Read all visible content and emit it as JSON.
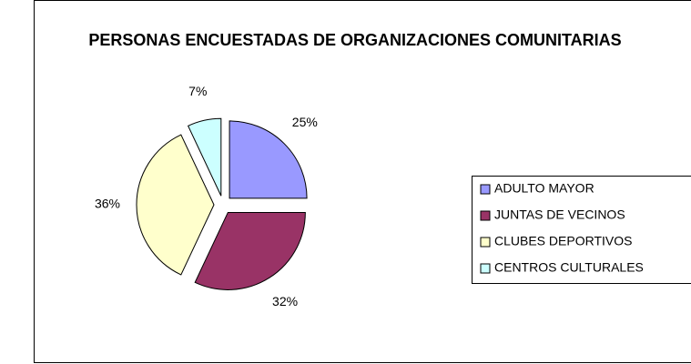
{
  "chart_data": {
    "type": "pie",
    "title": "PERSONAS ENCUESTADAS DE ORGANIZACIONES COMUNITARIAS",
    "categories": [
      "ADULTO MAYOR",
      "JUNTAS DE VECINOS",
      "CLUBES DEPORTIVOS",
      "CENTROS CULTURALES"
    ],
    "values": [
      25,
      32,
      36,
      7
    ],
    "value_labels": [
      "25%",
      "32%",
      "36%",
      "7%"
    ],
    "colors": [
      "#9999ff",
      "#993366",
      "#ffffcc",
      "#ccffff"
    ],
    "legend": "right"
  }
}
